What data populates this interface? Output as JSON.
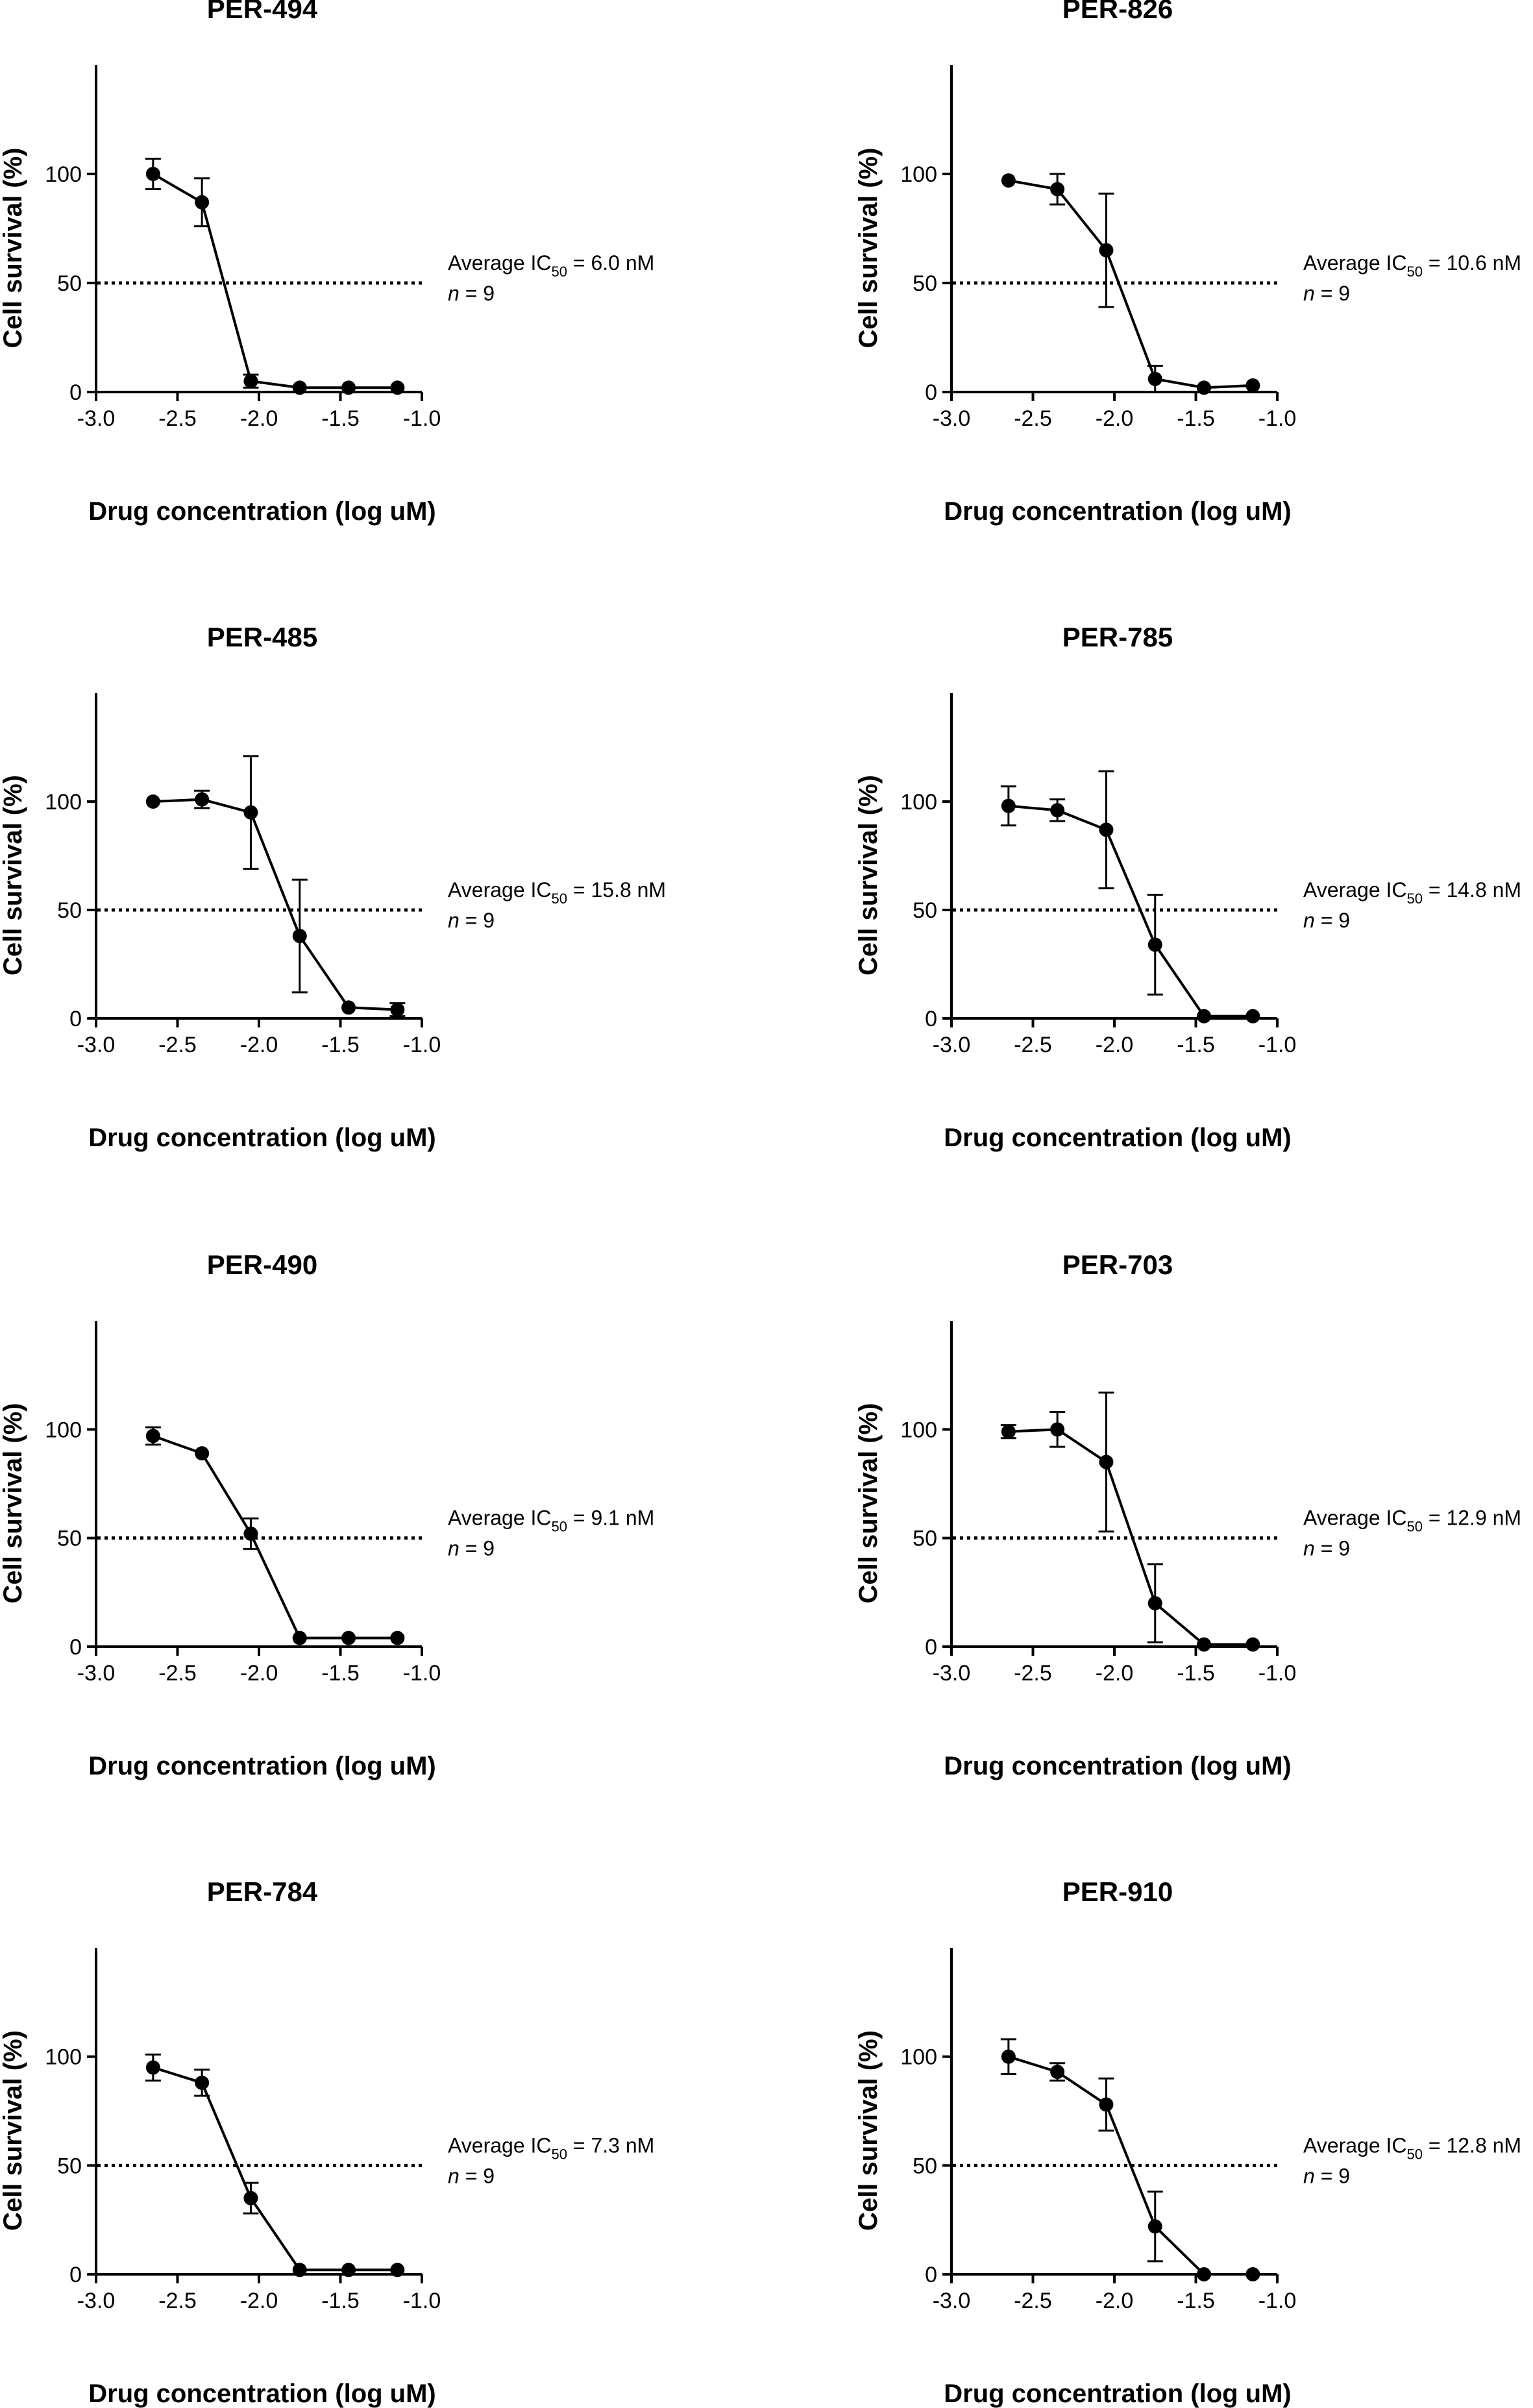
{
  "figure": {
    "panels": 8,
    "layout": "4 rows x 2 columns"
  },
  "chart_data": [
    {
      "type": "line",
      "title": "PER-494",
      "xlabel": "Drug concentration (log uM)",
      "ylabel": "Cell survival (%)",
      "xlim": [
        -3.0,
        -1.0
      ],
      "ylim": [
        0,
        150
      ],
      "xticks": [
        "-3.0",
        "-2.5",
        "-2.0",
        "-1.5",
        "-1.0"
      ],
      "yticks": [
        "0",
        "50",
        "100"
      ],
      "series": [
        {
          "name": "PER-494",
          "x": [
            -2.65,
            -2.35,
            -2.05,
            -1.75,
            -1.45,
            -1.15
          ],
          "y": [
            100,
            87,
            5,
            2,
            2,
            2
          ],
          "err": [
            7,
            11,
            3,
            1,
            1,
            1
          ]
        }
      ],
      "reference_line": {
        "y": 50,
        "style": "dotted"
      },
      "annotation": {
        "prefix": "Average IC",
        "subscript": "50",
        "value": " = 6.0 nM",
        "n_label": "n",
        "n_value": " = 9"
      }
    },
    {
      "type": "line",
      "title": "PER-826",
      "xlabel": "Drug concentration (log uM)",
      "ylabel": "Cell survival (%)",
      "xlim": [
        -3.0,
        -1.0
      ],
      "ylim": [
        0,
        150
      ],
      "xticks": [
        "-3.0",
        "-2.5",
        "-2.0",
        "-1.5",
        "-1.0"
      ],
      "yticks": [
        "0",
        "50",
        "100"
      ],
      "series": [
        {
          "name": "PER-826",
          "x": [
            -2.65,
            -2.35,
            -2.05,
            -1.75,
            -1.45,
            -1.15
          ],
          "y": [
            97,
            93,
            65,
            6,
            2,
            3
          ],
          "err": [
            1,
            7,
            26,
            6,
            1,
            1
          ]
        }
      ],
      "reference_line": {
        "y": 50,
        "style": "dotted"
      },
      "annotation": {
        "prefix": "Average IC",
        "subscript": "50",
        "value": " = 10.6 nM",
        "n_label": "n",
        "n_value": " = 9"
      }
    },
    {
      "type": "line",
      "title": "PER-485",
      "xlabel": "Drug concentration (log uM)",
      "ylabel": "Cell survival (%)",
      "xlim": [
        -3.0,
        -1.0
      ],
      "ylim": [
        0,
        150
      ],
      "xticks": [
        "-3.0",
        "-2.5",
        "-2.0",
        "-1.5",
        "-1.0"
      ],
      "yticks": [
        "0",
        "50",
        "100"
      ],
      "series": [
        {
          "name": "PER-485",
          "x": [
            -2.65,
            -2.35,
            -2.05,
            -1.75,
            -1.45,
            -1.15
          ],
          "y": [
            100,
            101,
            95,
            38,
            5,
            4
          ],
          "err": [
            1,
            4,
            26,
            26,
            1,
            3
          ]
        }
      ],
      "reference_line": {
        "y": 50,
        "style": "dotted"
      },
      "annotation": {
        "prefix": "Average IC",
        "subscript": "50",
        "value": " =  15.8 nM",
        "n_label": "n",
        "n_value": " = 9"
      }
    },
    {
      "type": "line",
      "title": "PER-785",
      "xlabel": "Drug concentration (log uM)",
      "ylabel": "Cell survival (%)",
      "xlim": [
        -3.0,
        -1.0
      ],
      "ylim": [
        0,
        150
      ],
      "xticks": [
        "-3.0",
        "-2.5",
        "-2.0",
        "-1.5",
        "-1.0"
      ],
      "yticks": [
        "0",
        "50",
        "100"
      ],
      "series": [
        {
          "name": "PER-785",
          "x": [
            -2.65,
            -2.35,
            -2.05,
            -1.75,
            -1.45,
            -1.15
          ],
          "y": [
            98,
            96,
            87,
            34,
            1,
            1
          ],
          "err": [
            9,
            5,
            27,
            23,
            1,
            1
          ]
        }
      ],
      "reference_line": {
        "y": 50,
        "style": "dotted"
      },
      "annotation": {
        "prefix": "Average IC",
        "subscript": "50",
        "value": " = 14.8 nM",
        "n_label": "n",
        "n_value": " = 9"
      }
    },
    {
      "type": "line",
      "title": "PER-490",
      "xlabel": "Drug concentration (log uM)",
      "ylabel": "Cell survival (%)",
      "xlim": [
        -3.0,
        -1.0
      ],
      "ylim": [
        0,
        150
      ],
      "xticks": [
        "-3.0",
        "-2.5",
        "-2.0",
        "-1.5",
        "-1.0"
      ],
      "yticks": [
        "0",
        "50",
        "100"
      ],
      "series": [
        {
          "name": "PER-490",
          "x": [
            -2.65,
            -2.35,
            -2.05,
            -1.75,
            -1.45,
            -1.15
          ],
          "y": [
            97,
            89,
            52,
            4,
            4,
            4
          ],
          "err": [
            4,
            1,
            7,
            1,
            1,
            1
          ]
        }
      ],
      "reference_line": {
        "y": 50,
        "style": "dotted"
      },
      "annotation": {
        "prefix": "Average IC",
        "subscript": "50",
        "value": " = 9.1 nM",
        "n_label": "n",
        "n_value": " = 9"
      }
    },
    {
      "type": "line",
      "title": "PER-703",
      "xlabel": "Drug concentration (log uM)",
      "ylabel": "Cell survival (%)",
      "xlim": [
        -3.0,
        -1.0
      ],
      "ylim": [
        0,
        150
      ],
      "xticks": [
        "-3.0",
        "-2.5",
        "-2.0",
        "-1.5",
        "-1.0"
      ],
      "yticks": [
        "0",
        "50",
        "100"
      ],
      "series": [
        {
          "name": "PER-703",
          "x": [
            -2.65,
            -2.35,
            -2.05,
            -1.75,
            -1.45,
            -1.15
          ],
          "y": [
            99,
            100,
            85,
            20,
            1,
            1
          ],
          "err": [
            3,
            8,
            32,
            18,
            1,
            1
          ]
        }
      ],
      "reference_line": {
        "y": 50,
        "style": "dotted"
      },
      "annotation": {
        "prefix": "Average IC",
        "subscript": "50",
        "value": " = 12.9 nM",
        "n_label": "n",
        "n_value": " = 9"
      }
    },
    {
      "type": "line",
      "title": "PER-784",
      "xlabel": "Drug concentration (log uM)",
      "ylabel": "Cell survival (%)",
      "xlim": [
        -3.0,
        -1.0
      ],
      "ylim": [
        0,
        150
      ],
      "xticks": [
        "-3.0",
        "-2.5",
        "-2.0",
        "-1.5",
        "-1.0"
      ],
      "yticks": [
        "0",
        "50",
        "100"
      ],
      "series": [
        {
          "name": "PER-784",
          "x": [
            -2.65,
            -2.35,
            -2.05,
            -1.75,
            -1.45,
            -1.15
          ],
          "y": [
            95,
            88,
            35,
            2,
            2,
            2
          ],
          "err": [
            6,
            6,
            7,
            1,
            1,
            1
          ]
        }
      ],
      "reference_line": {
        "y": 50,
        "style": "dotted"
      },
      "annotation": {
        "prefix": "Average IC",
        "subscript": "50",
        "value": " = 7.3 nM",
        "n_label": "n",
        "n_value": " = 9"
      }
    },
    {
      "type": "line",
      "title": "PER-910",
      "xlabel": "Drug concentration (log uM)",
      "ylabel": "Cell survival (%)",
      "xlim": [
        -3.0,
        -1.0
      ],
      "ylim": [
        0,
        150
      ],
      "xticks": [
        "-3.0",
        "-2.5",
        "-2.0",
        "-1.5",
        "-1.0"
      ],
      "yticks": [
        "0",
        "50",
        "100"
      ],
      "series": [
        {
          "name": "PER-910",
          "x": [
            -2.65,
            -2.35,
            -2.05,
            -1.75,
            -1.45,
            -1.15
          ],
          "y": [
            100,
            93,
            78,
            22,
            -1,
            0
          ],
          "err": [
            8,
            4,
            12,
            16,
            1,
            1
          ]
        }
      ],
      "reference_line": {
        "y": 50,
        "style": "dotted"
      },
      "annotation": {
        "prefix": "Average IC",
        "subscript": "50",
        "value": " = 12.8 nM",
        "n_label": "n",
        "n_value": " = 9"
      }
    }
  ]
}
